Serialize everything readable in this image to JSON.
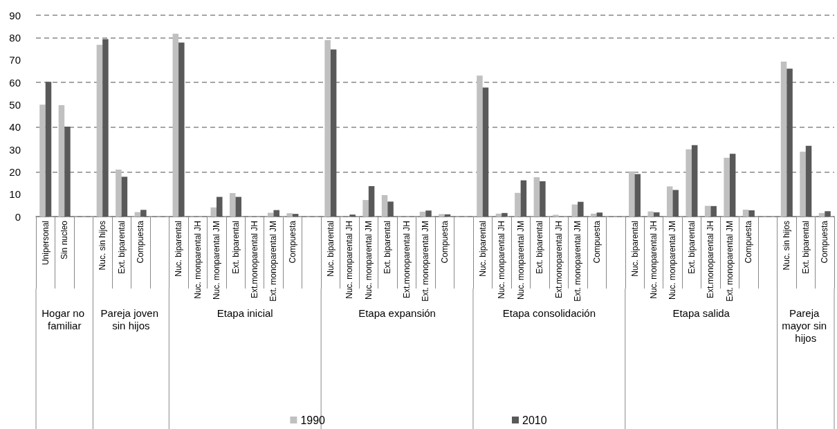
{
  "chart_data": {
    "type": "bar",
    "categories": [
      "Unipersonal",
      "Sin nucleo",
      null,
      "Nuc. sin hijos",
      "Ext. biparental",
      "Compuesta",
      null,
      "Nuc. biparental",
      "Nuc. monparental JH",
      "Nuc. monparental JM",
      "Ext. biparental",
      "Ext.monoparental JH",
      "Ext. monoparental JM",
      "Compuesta",
      null,
      "Nuc. biparental",
      "Nuc. monparental JH",
      "Nuc. monparental JM",
      "Ext. biparental",
      "Ext.monoparental JH",
      "Ext. monoparental JM",
      "Compuesta",
      null,
      "Nuc. biparental",
      "Nuc. monparental JH",
      "Nuc. monparental JM",
      "Ext. biparental",
      "Ext.monoparental JH",
      "Ext. monoparental JM",
      "Compuesta",
      null,
      "Nuc. biparental",
      "Nuc. monparental JH",
      "Nuc. monparental JM",
      "Ext. biparental",
      "Ext.monoparental JH",
      "Ext. monoparental JM",
      "Compuesta",
      null,
      "Nuc. sin hijos",
      "Ext. biparental",
      "Compuesta"
    ],
    "series": [
      {
        "name": "1990",
        "color": "#c0c0c0",
        "values": [
          50,
          49.8,
          null,
          76.8,
          21,
          2,
          null,
          81.7,
          null,
          4.1,
          10.5,
          0,
          1.7,
          1.5,
          null,
          78.9,
          null,
          7.4,
          9.6,
          0,
          2.2,
          1.1,
          null,
          63,
          1.3,
          10.6,
          17.6,
          0.8,
          5.4,
          1.3,
          null,
          20.2,
          2.3,
          13.5,
          30.1,
          4.8,
          26.3,
          3.1,
          null,
          69.3,
          29,
          1.6
        ]
      },
      {
        "name": "2010",
        "color": "#595959",
        "values": [
          60.2,
          40.2,
          null,
          79.3,
          17.8,
          3,
          null,
          77.8,
          null,
          8.8,
          8.8,
          0,
          2.9,
          1.2,
          null,
          74.7,
          0.9,
          13.6,
          6.7,
          0,
          2.7,
          1,
          null,
          57.7,
          1.6,
          16.2,
          15.8,
          null,
          6.6,
          1.8,
          null,
          19,
          1.9,
          11.9,
          31.9,
          4.7,
          28.1,
          2.8,
          null,
          66.1,
          31.6,
          2.4
        ]
      }
    ],
    "annotations": [
      "Hogar no familiar",
      "Pareja joven sin hijos",
      "Etapa inicial",
      "Etapa expansión",
      "Etapa consolidación",
      "Etapa salida",
      "Pareja mayor sin hijos"
    ],
    "ylim": [
      0,
      90
    ],
    "yticks": [
      0,
      10,
      20,
      30,
      40,
      50,
      60,
      70,
      80,
      90
    ],
    "grid": "y",
    "legend": "bottom"
  }
}
